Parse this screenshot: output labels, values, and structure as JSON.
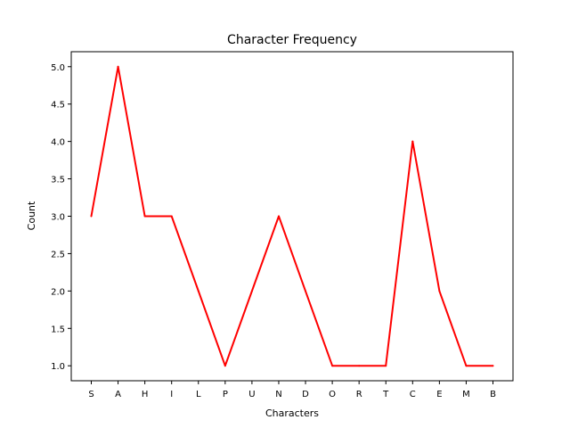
{
  "chart_data": {
    "type": "line",
    "title": "Character Frequency",
    "xlabel": "Characters",
    "ylabel": "Count",
    "categories": [
      "S",
      "A",
      "H",
      "I",
      "L",
      "P",
      "U",
      "N",
      "D",
      "O",
      "R",
      "T",
      "C",
      "E",
      "M",
      "B"
    ],
    "values": [
      3,
      5,
      3,
      3,
      2,
      1,
      2,
      3,
      2,
      1,
      1,
      1,
      4,
      2,
      1,
      1
    ],
    "yticks": [
      "1.0",
      "1.5",
      "2.0",
      "2.5",
      "3.0",
      "3.5",
      "4.0",
      "4.5",
      "5.0"
    ],
    "ylim": [
      0.8,
      5.2
    ],
    "grid": false,
    "legend": "none",
    "line_color": "#ff0000"
  }
}
